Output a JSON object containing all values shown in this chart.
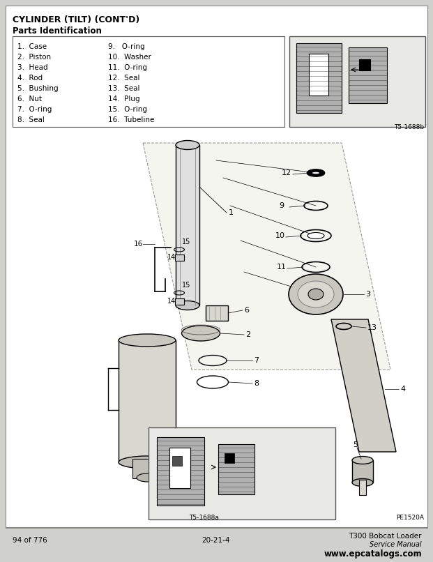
{
  "title": "CYLINDER (TILT) (CONT'D)",
  "subtitle": "Parts Identification",
  "bg_color": "#f0f0ec",
  "page_bg": "#d0d0cc",
  "parts_list_col1": [
    "1.  Case",
    "2.  Piston",
    "3.  Head",
    "4.  Rod",
    "5.  Bushing",
    "6.  Nut",
    "7.  O-ring",
    "8.  Seal"
  ],
  "parts_list_col2": [
    "9.   O-ring",
    "10.  Washer",
    "11.  O-ring",
    "12.  Seal",
    "13.  Seal",
    "14.  Plug",
    "15.  O-ring",
    "16.  Tubeline"
  ],
  "footer_left": "94 of 776",
  "footer_center": "20-21-4",
  "footer_right1": "T300 Bobcat Loader",
  "footer_right2": "Service Manual",
  "footer_url": "www.epcatalogs.com",
  "label_ts1688b": "T5-1688b",
  "label_ts1688a": "T5-1688a",
  "label_pe1520a": "PE1520A"
}
